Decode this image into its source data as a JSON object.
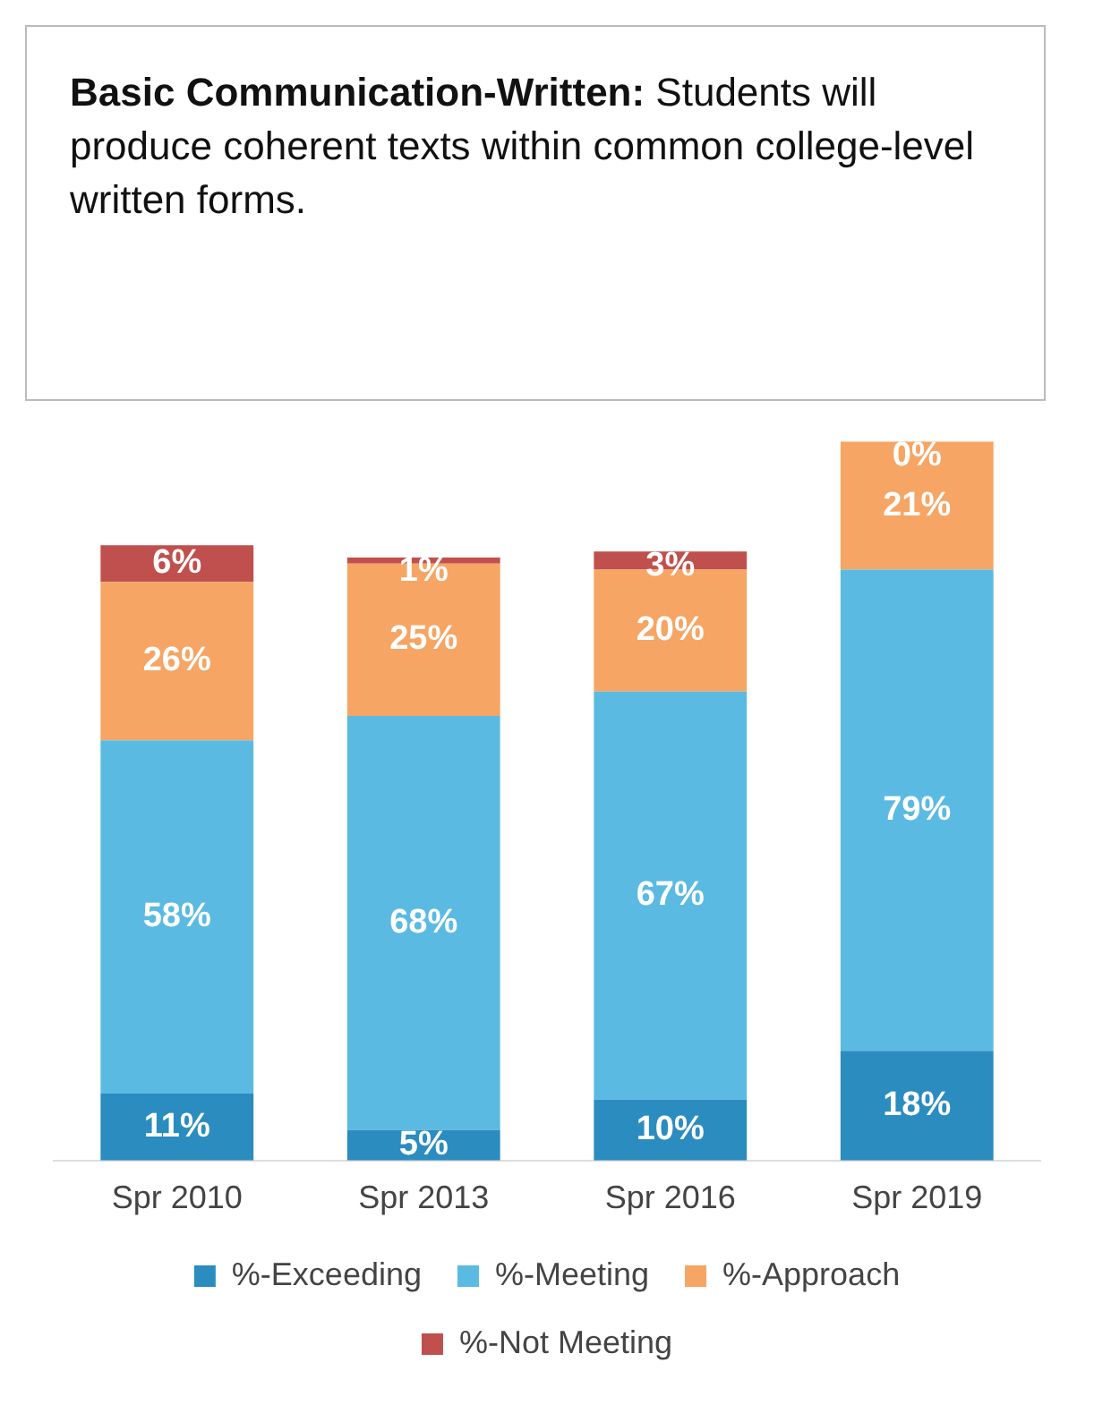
{
  "chart_data": {
    "type": "bar",
    "stacked": true,
    "title": "Basic Communication-Written: Students will produce coherent texts within common college-level written forms.",
    "categories": [
      "Spr 2010",
      "Spr 2013",
      "Spr 2016",
      "Spr 2019"
    ],
    "legend": "bottom",
    "series": [
      {
        "name": "%-Exceeding",
        "color": "#2b8cc0",
        "values": [
          11,
          5,
          10,
          18
        ],
        "value_labels": [
          "11%",
          "5%",
          "10%",
          "18%"
        ]
      },
      {
        "name": "%-Meeting",
        "color": "#5bbae2",
        "values": [
          58,
          68,
          67,
          79
        ],
        "value_labels": [
          "58%",
          "68%",
          "67%",
          "79%"
        ]
      },
      {
        "name": "%-Approach",
        "color": "#f6a564",
        "values": [
          26,
          25,
          20,
          21
        ],
        "value_labels": [
          "26%",
          "25%",
          "20%",
          "21%"
        ]
      },
      {
        "name": "%-Not Meeting",
        "color": "#c0504d",
        "values": [
          6,
          1,
          3,
          0
        ],
        "value_labels": [
          "6%",
          "1%",
          "3%",
          "0%"
        ]
      }
    ]
  }
}
